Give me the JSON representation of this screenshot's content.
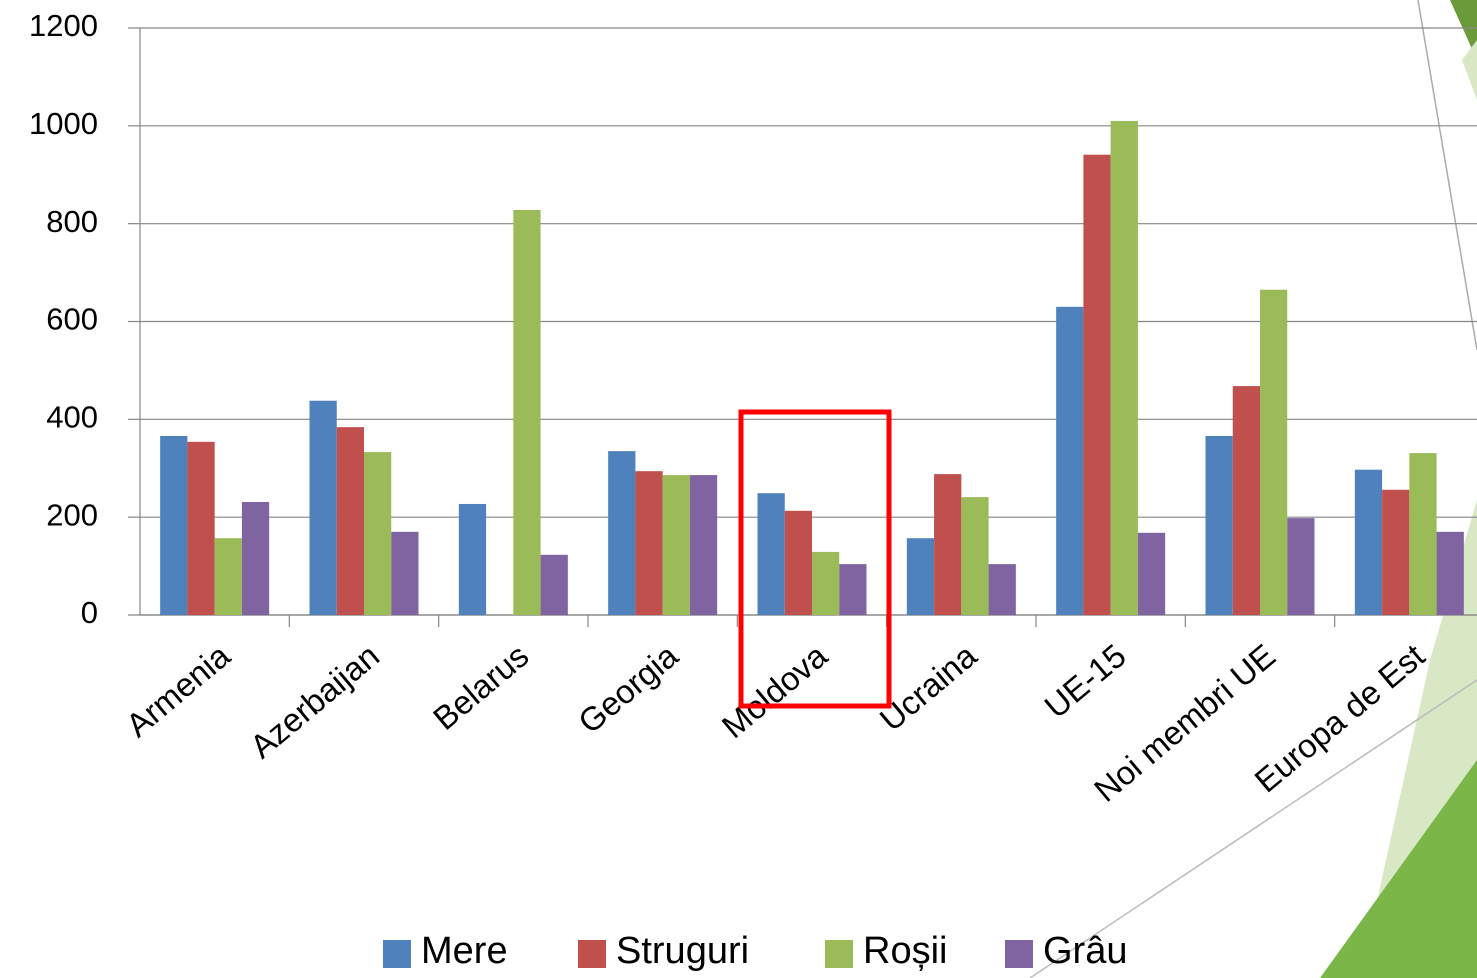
{
  "chart_data": {
    "type": "bar",
    "categories": [
      "Armenia",
      "Azerbaijan",
      "Belarus",
      "Georgia",
      "Moldova",
      "Ucraina",
      "UE-15",
      "Noi membri UE",
      "Europa de Est"
    ],
    "series": [
      {
        "name": "Mere",
        "color": "#4f81bd",
        "values": [
          366,
          438,
          227,
          335,
          249,
          157,
          630,
          366,
          297
        ]
      },
      {
        "name": "Struguri",
        "color": "#c0504d",
        "values": [
          354,
          384,
          0,
          294,
          213,
          288,
          941,
          468,
          256
        ]
      },
      {
        "name": "Roșii",
        "color": "#9bbb59",
        "values": [
          157,
          333,
          828,
          286,
          129,
          241,
          1010,
          665,
          331
        ]
      },
      {
        "name": "Grâu",
        "color": "#8064a2",
        "values": [
          231,
          170,
          123,
          286,
          104,
          104,
          168,
          198,
          170
        ]
      }
    ],
    "ylim": [
      0,
      1200
    ],
    "yticks": [
      0,
      200,
      400,
      600,
      800,
      1000,
      1200
    ],
    "grid": true,
    "legend": "bottom"
  }
}
